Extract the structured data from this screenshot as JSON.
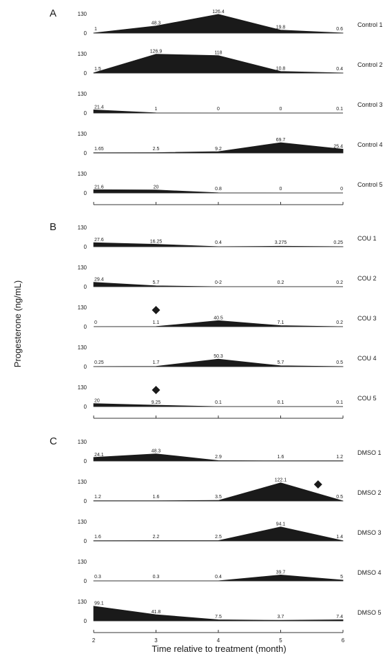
{
  "chart_data": {
    "type": "area",
    "ylabel": "Progesterone (ng/mL)",
    "xlabel": "Time relative to treatment (month)",
    "x": [
      2,
      3,
      4,
      5,
      6
    ],
    "x_tick_labels": [
      "2",
      "3",
      "4",
      "5",
      "6"
    ],
    "ylim": [
      0,
      130
    ],
    "y_tick_labels": [
      "130",
      "0"
    ],
    "colors": {
      "fill": "#1a1a1a",
      "axis": "#333333"
    },
    "panels": [
      {
        "letter": "A",
        "rows": [
          {
            "name": "Control 1",
            "values": [
              1,
              48.3,
              126.4,
              19.8,
              0.6
            ],
            "labels": [
              "1",
              "48.3",
              "126.4",
              "19.8",
              "0.6"
            ],
            "markers": []
          },
          {
            "name": "Control 2",
            "values": [
              1.5,
              126.9,
              118,
              10.8,
              0.4
            ],
            "labels": [
              "1.5",
              "126.9",
              "118",
              "10.8",
              "0.4"
            ],
            "markers": []
          },
          {
            "name": "Control 3",
            "values": [
              21.4,
              1,
              0,
              0,
              0.1
            ],
            "labels": [
              "21.4",
              "1",
              "0",
              "0",
              "0.1"
            ],
            "markers": []
          },
          {
            "name": "Control 4",
            "values": [
              1.65,
              2.5,
              9.2,
              69.7,
              25.4
            ],
            "labels": [
              "1.65",
              "2.5",
              "9.2",
              "69.7",
              "25.4"
            ],
            "markers": []
          },
          {
            "name": "Control 5",
            "values": [
              21.6,
              20,
              0.8,
              0,
              0
            ],
            "labels": [
              "21.6",
              "20",
              "0.8",
              "0",
              "0"
            ],
            "markers": []
          }
        ]
      },
      {
        "letter": "B",
        "rows": [
          {
            "name": "COU 1",
            "values": [
              27.6,
              16.25,
              0.4,
              3.275,
              0.25
            ],
            "labels": [
              "27.6",
              "16.25",
              "0.4",
              "3.275",
              "0.25"
            ],
            "markers": []
          },
          {
            "name": "COU 2",
            "values": [
              29.4,
              5.7,
              0.2,
              0.2,
              0.2
            ],
            "labels": [
              "29.4",
              "5.7",
              "0-2",
              "0.2",
              "0.2"
            ],
            "markers": []
          },
          {
            "name": "COU 3",
            "values": [
              0,
              1.1,
              40.5,
              7.1,
              0.2
            ],
            "labels": [
              "0",
              "1.1",
              "40.5",
              "7.1",
              "0.2"
            ],
            "markers": [
              3
            ]
          },
          {
            "name": "COU 4",
            "values": [
              0.25,
              1.7,
              50.3,
              5.7,
              0.5
            ],
            "labels": [
              "0.25",
              "1.7",
              "50.3",
              "5.7",
              "0.5"
            ],
            "markers": []
          },
          {
            "name": "COU 5",
            "values": [
              20,
              9.25,
              0.1,
              0.1,
              0.1
            ],
            "labels": [
              "20",
              "9.25",
              "0.1",
              "0.1",
              "0.1"
            ],
            "markers": [
              3
            ]
          }
        ]
      },
      {
        "letter": "C",
        "rows": [
          {
            "name": "DMSO 1",
            "values": [
              24.1,
              48.3,
              2.9,
              1.6,
              1.2
            ],
            "labels": [
              "24.1",
              "48.3",
              "2.9",
              "1.6",
              "1.2"
            ],
            "markers": []
          },
          {
            "name": "DMSO 2",
            "values": [
              1.2,
              1.6,
              3.5,
              122.1,
              0.5
            ],
            "labels": [
              "1.2",
              "1.6",
              "3.5",
              "122.1",
              "0.5"
            ],
            "markers": [
              5.6
            ]
          },
          {
            "name": "DMSO 3",
            "values": [
              1.6,
              2.2,
              2.5,
              94.1,
              1.4
            ],
            "labels": [
              "1.6",
              "2.2",
              "2.5",
              "94.1",
              "1.4"
            ],
            "markers": []
          },
          {
            "name": "DMSO 4",
            "values": [
              0.3,
              0.3,
              0.4,
              39.7,
              5
            ],
            "labels": [
              "0.3",
              "0.3",
              "0.4",
              "39.7",
              "5"
            ],
            "markers": []
          },
          {
            "name": "DMSO 5",
            "values": [
              99.1,
              41.8,
              7.5,
              3.7,
              7.4
            ],
            "labels": [
              "99.1",
              "41.8",
              "7.5",
              "3.7",
              "7.4"
            ],
            "markers": []
          }
        ]
      }
    ]
  }
}
